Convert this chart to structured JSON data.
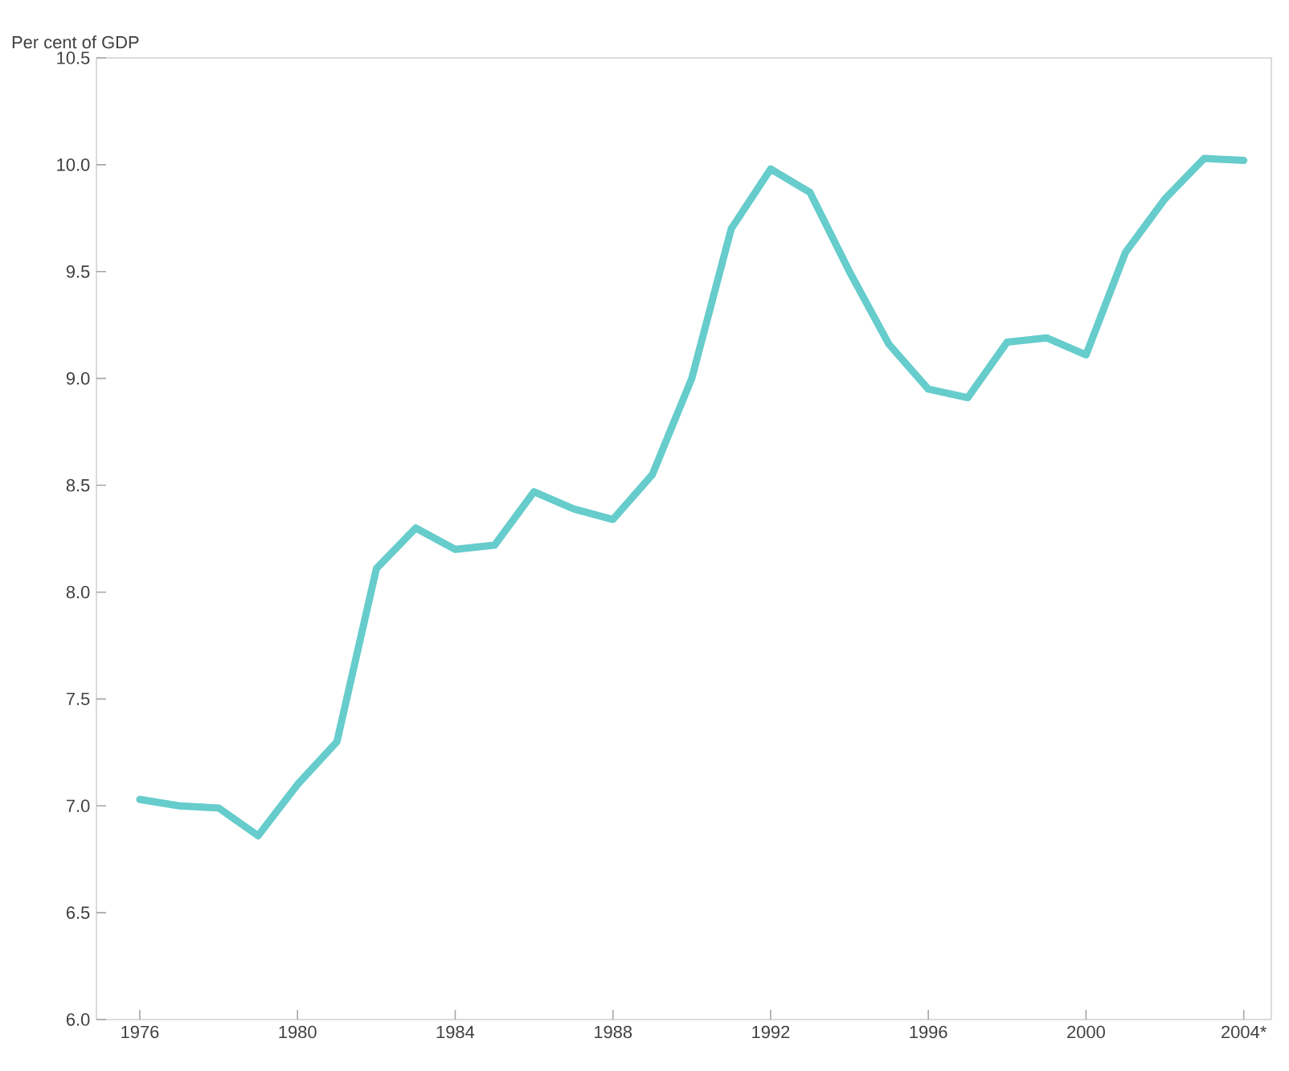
{
  "chart_data": {
    "type": "line",
    "ylabel": "Per cent of GDP",
    "x": [
      1976,
      1977,
      1978,
      1979,
      1980,
      1981,
      1982,
      1983,
      1984,
      1985,
      1986,
      1987,
      1988,
      1989,
      1990,
      1991,
      1992,
      1993,
      1994,
      1995,
      1996,
      1997,
      1998,
      1999,
      2000,
      2001,
      2002,
      2003,
      2004
    ],
    "series": [
      {
        "color": "#66cccc",
        "values": [
          7.03,
          7.0,
          6.99,
          6.86,
          7.1,
          7.3,
          8.11,
          8.3,
          8.2,
          8.22,
          8.47,
          8.39,
          8.34,
          8.55,
          9.0,
          9.7,
          9.98,
          9.87,
          9.5,
          9.16,
          8.95,
          8.91,
          9.17,
          9.19,
          9.11,
          9.59,
          9.84,
          10.03,
          10.02
        ]
      }
    ],
    "xlim": [
      1974.9,
      2004.7
    ],
    "xticks": [
      1976,
      1980,
      1984,
      1988,
      1992,
      1996,
      2000,
      {
        "value": 2004,
        "label": "2004*"
      }
    ],
    "ylim": [
      6.0,
      10.5
    ],
    "yticks": [
      {
        "value": 6.0,
        "label": "6.0"
      },
      {
        "value": 6.5,
        "label": "6.5"
      },
      {
        "value": 7.0,
        "label": "7.0"
      },
      {
        "value": 7.5,
        "label": "7.5"
      },
      {
        "value": 8.0,
        "label": "8.0"
      },
      {
        "value": 8.5,
        "label": "8.5"
      },
      {
        "value": 9.0,
        "label": "9.0"
      },
      {
        "value": 9.5,
        "label": "9.5"
      },
      {
        "value": 10.0,
        "label": "10.0"
      },
      {
        "value": 10.5,
        "label": "10.5"
      }
    ],
    "marker": "none",
    "line_style": "solid"
  }
}
